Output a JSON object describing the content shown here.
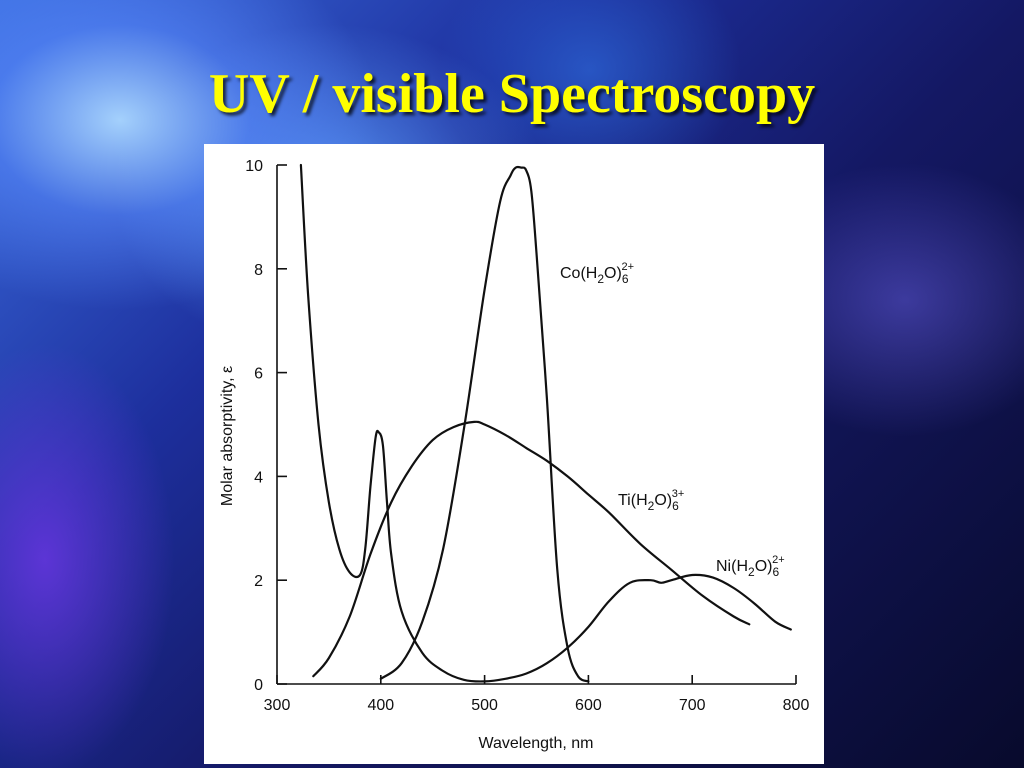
{
  "slide": {
    "title": "UV / visible Spectroscopy"
  },
  "chart_data": {
    "type": "line",
    "xlabel": "Wavelength, nm",
    "ylabel": "Molar absorptivity, ε",
    "xlim": [
      300,
      800
    ],
    "ylim": [
      0,
      10
    ],
    "x_ticks": [
      "300",
      "400",
      "500",
      "600",
      "700",
      "800"
    ],
    "y_ticks": [
      "0",
      "2",
      "4",
      "6",
      "8",
      "10"
    ],
    "grid": false,
    "legend": "none",
    "series": [
      {
        "name": "Co(H₂O)₆²⁺",
        "label_base": "Co(H",
        "label_sub1": "2",
        "label_mid": "O)",
        "label_sub2": "6",
        "label_sup": "2+",
        "x": [
          400,
          420,
          440,
          460,
          480,
          500,
          515,
          525,
          530,
          535,
          540,
          545,
          550,
          560,
          570,
          580,
          590,
          600
        ],
        "y": [
          0.1,
          0.4,
          1.2,
          2.6,
          4.9,
          7.6,
          9.3,
          9.8,
          9.95,
          9.95,
          9.9,
          9.5,
          8.3,
          5.5,
          2.2,
          0.7,
          0.15,
          0.05
        ]
      },
      {
        "name": "Ti(H₂O)₆³⁺",
        "label_base": "Ti(H",
        "label_sub1": "2",
        "label_mid": "O)",
        "label_sub2": "6",
        "label_sup": "3+",
        "x": [
          335,
          350,
          370,
          390,
          410,
          430,
          450,
          470,
          490,
          500,
          520,
          540,
          560,
          580,
          600,
          620,
          650,
          680,
          710,
          740,
          755
        ],
        "y": [
          0.15,
          0.5,
          1.3,
          2.5,
          3.5,
          4.2,
          4.7,
          4.95,
          5.05,
          5.0,
          4.8,
          4.55,
          4.3,
          4.0,
          3.65,
          3.3,
          2.7,
          2.2,
          1.7,
          1.3,
          1.15
        ]
      },
      {
        "name": "Ni(H₂O)₆²⁺",
        "label_base": "Ni(H",
        "label_sub1": "2",
        "label_mid": "O)",
        "label_sub2": "6",
        "label_sup": "2+",
        "x": [
          323,
          330,
          340,
          350,
          360,
          370,
          380,
          385,
          390,
          395,
          398,
          402,
          406,
          410,
          420,
          440,
          460,
          480,
          500,
          520,
          540,
          560,
          580,
          600,
          620,
          640,
          660,
          670,
          680,
          700,
          720,
          740,
          760,
          780,
          795
        ],
        "y": [
          10.0,
          7.5,
          5.0,
          3.5,
          2.6,
          2.15,
          2.1,
          2.6,
          3.8,
          4.75,
          4.85,
          4.6,
          3.5,
          2.5,
          1.4,
          0.6,
          0.25,
          0.08,
          0.05,
          0.1,
          0.2,
          0.4,
          0.7,
          1.1,
          1.6,
          1.95,
          2.0,
          1.95,
          2.0,
          2.1,
          2.05,
          1.85,
          1.55,
          1.2,
          1.05
        ]
      }
    ]
  }
}
